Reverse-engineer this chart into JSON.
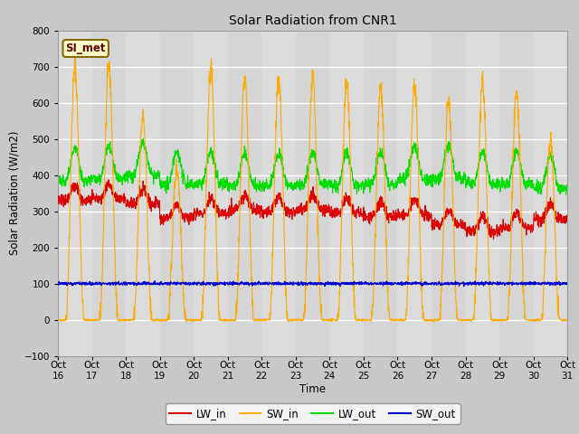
{
  "title": "Solar Radiation from CNR1",
  "xlabel": "Time",
  "ylabel": "Solar Radiation (W/m2)",
  "ylim": [
    -100,
    800
  ],
  "yticks": [
    -100,
    0,
    100,
    200,
    300,
    400,
    500,
    600,
    700,
    800
  ],
  "n_days": 15,
  "colors": {
    "LW_in": "#dd0000",
    "SW_in": "#ffaa00",
    "LW_out": "#00dd00",
    "SW_out": "#0000cc"
  },
  "legend_label": "SI_met",
  "legend_bg": "#ffffcc",
  "legend_border": "#886600",
  "fig_bg": "#c8c8c8",
  "plot_bg": "#e0e0e0",
  "xticklabels": [
    "Oct 16",
    "Oct 17",
    "Oct 18",
    "Oct 19",
    "Oct 20",
    "Oct 21",
    "Oct 22",
    "Oct 23",
    "Oct 24",
    "Oct 25",
    "Oct 26",
    "Oct 27",
    "Oct 28",
    "Oct 29",
    "Oct 30",
    "Oct 31"
  ]
}
